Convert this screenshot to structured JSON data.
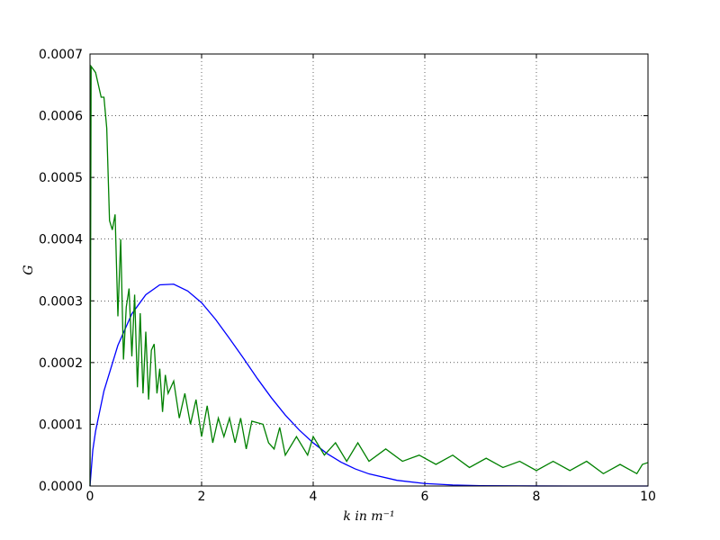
{
  "chart_data": {
    "type": "line",
    "x_label": "k in m⁻¹",
    "y_label": "G",
    "xlim": [
      0,
      10
    ],
    "ylim": [
      0,
      0.0007
    ],
    "xticks": [
      0,
      2,
      4,
      6,
      8,
      10
    ],
    "yticks": [
      {
        "value": 0,
        "label": "0.0000"
      },
      {
        "value": 0.0001,
        "label": "0.0001"
      },
      {
        "value": 0.0002,
        "label": "0.0002"
      },
      {
        "value": 0.0003,
        "label": "0.0003"
      },
      {
        "value": 0.0004,
        "label": "0.0004"
      },
      {
        "value": 0.0005,
        "label": "0.0005"
      },
      {
        "value": 0.0006,
        "label": "0.0006"
      },
      {
        "value": 0.0007,
        "label": "0.0007"
      }
    ],
    "grid": true,
    "series": [
      {
        "color": "#0000ff",
        "x": [
          0,
          0.05,
          0.1,
          0.25,
          0.5,
          0.75,
          1,
          1.25,
          1.5,
          1.75,
          2,
          2.25,
          2.5,
          2.75,
          3,
          3.25,
          3.5,
          3.75,
          4,
          4.25,
          4.5,
          4.75,
          5,
          5.5,
          6,
          6.5,
          7,
          8,
          9,
          10
        ],
        "values": [
          0,
          5.81e-05,
          8.88e-05,
          0.000154,
          0.000228,
          0.000279,
          0.00031,
          0.000326,
          0.000327,
          0.000316,
          0.000297,
          0.00027,
          0.000239,
          0.000207,
          0.000174,
          0.000143,
          0.000115,
          9.07e-05,
          6.99e-05,
          5.24e-05,
          3.86e-05,
          2.78e-05,
          1.96e-05,
          9.2e-06,
          4e-06,
          1.6e-06,
          6e-07,
          1e-07,
          0,
          0
        ]
      },
      {
        "color": "#008000",
        "x": [
          0,
          0.02,
          0.1,
          0.2,
          0.25,
          0.3,
          0.35,
          0.4,
          0.45,
          0.5,
          0.55,
          0.6,
          0.65,
          0.7,
          0.75,
          0.8,
          0.85,
          0.9,
          0.95,
          1,
          1.05,
          1.1,
          1.15,
          1.2,
          1.25,
          1.3,
          1.35,
          1.4,
          1.5,
          1.6,
          1.7,
          1.8,
          1.9,
          2,
          2.1,
          2.2,
          2.3,
          2.4,
          2.5,
          2.6,
          2.7,
          2.8,
          2.9,
          3.1,
          3.2,
          3.3,
          3.4,
          3.5,
          3.7,
          3.9,
          4,
          4.2,
          4.4,
          4.6,
          4.8,
          5,
          5.3,
          5.6,
          5.9,
          6.2,
          6.5,
          6.8,
          7.1,
          7.4,
          7.7,
          8,
          8.3,
          8.6,
          8.9,
          9.2,
          9.5,
          9.8,
          9.9,
          10
        ],
        "values": [
          0,
          0.00068,
          0.00067,
          0.00063,
          0.00063,
          0.00058,
          0.00043,
          0.000415,
          0.00044,
          0.000275,
          0.0004,
          0.000205,
          0.00029,
          0.00032,
          0.00021,
          0.00031,
          0.00016,
          0.00028,
          0.00015,
          0.00025,
          0.00014,
          0.00022,
          0.00023,
          0.00015,
          0.00019,
          0.00012,
          0.00018,
          0.00015,
          0.00017,
          0.00011,
          0.00015,
          0.0001,
          0.00014,
          8e-05,
          0.00013,
          7e-05,
          0.00011,
          8e-05,
          0.00011,
          7e-05,
          0.00011,
          6e-05,
          0.000105,
          0.0001,
          7e-05,
          6e-05,
          9.5e-05,
          5e-05,
          8e-05,
          5e-05,
          8e-05,
          5e-05,
          7e-05,
          4e-05,
          7e-05,
          4e-05,
          6e-05,
          4e-05,
          5e-05,
          3.5e-05,
          5e-05,
          3e-05,
          4.5e-05,
          3e-05,
          4e-05,
          2.5e-05,
          4e-05,
          2.5e-05,
          4e-05,
          2e-05,
          3.5e-05,
          2e-05,
          3.5e-05,
          3.8e-05
        ]
      }
    ]
  }
}
